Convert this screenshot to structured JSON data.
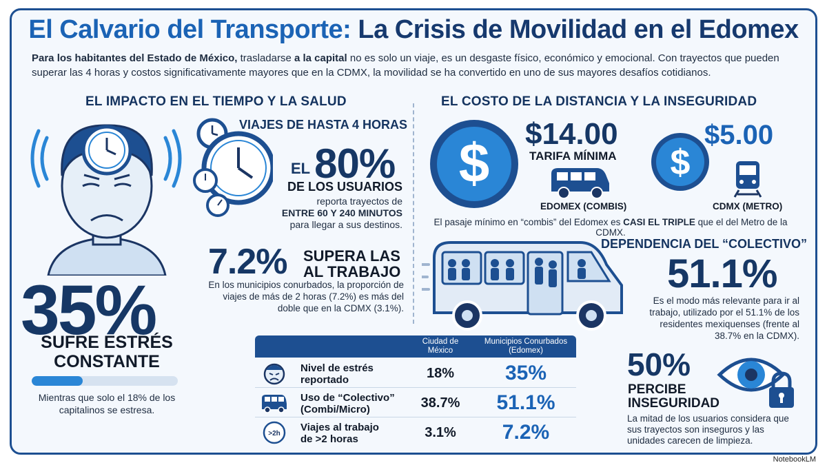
{
  "header": {
    "title_part1": "El Calvario del Transporte:",
    "title_part2": "La Crisis de Movilidad en el Edomex",
    "intro_b1": "Para los habitantes del Estado de México,",
    "intro_t1": " trasladarse ",
    "intro_b2": "a la capital",
    "intro_t2": " no es solo un viaje, es un desgaste físico, económico y emocional. Con trayectos que pueden superar las 4 horas y costos significativamente mayores que en la CDMX, la movilidad se ha convertido en uno de sus mayores desafíos cotidianos."
  },
  "left_section": {
    "heading": "EL IMPACTO EN EL TIEMPO Y LA SALUD",
    "stress_pct": "35%",
    "stress_label": "SUFRE ESTRÉS CONSTANTE",
    "stress_bar_fraction": 0.35,
    "stress_note": "Mientras que solo el 18% de los capitalinos se estresa.",
    "viajes_heading": "VIAJES DE HASTA 4 HORAS",
    "el_prefix": "EL",
    "users_pct": "80%",
    "users_label": "DE LOS USUARIOS",
    "reporta_t1": "reporta trayectos de",
    "reporta_b": "ENTRE 60 Y 240 MINUTOS",
    "reporta_t2": "para llegar a sus destinos.",
    "work_pct": "7.2%",
    "work_label_1": "SUPERA LAS",
    "work_label_2": "AL TRABAJO",
    "work_note": "En los municipios conurbados, la proporción de viajes de más de 2 horas (7.2%) es más del doble que en la CDMX (3.1%)."
  },
  "right_section": {
    "heading": "EL COSTO DE LA DISTANCIA Y LA INSEGURIDAD",
    "edomex_price": "$14.00",
    "edomex_price_label": "TARIFA MÍNIMA",
    "cdmx_price": "$5.00",
    "edomex_label": "EDOMEX (COMBIS)",
    "cdmx_label": "CDMX (METRO)",
    "pasaje_t1": "El pasaje mínimo en “combis” del Edomex es ",
    "pasaje_b": "CASI EL TRIPLE",
    "pasaje_t2": " que el del Metro de la CDMX.",
    "dependencia_heading": "DEPENDENCIA DEL “COLECTIVO”",
    "colectivo_pct": "51.1%",
    "colectivo_note": "Es el modo más relevante para ir al trabajo, utilizado por el 51.1% de los residentes mexiquenses (frente al 38.7% en la CDMX).",
    "inseguridad_pct": "50%",
    "inseguridad_label": "PERCIBE INSEGURIDAD",
    "inseguridad_note": "La mitad de los usuarios considera que sus trayectos son inseguros y las unidades carecen de limpieza."
  },
  "table": {
    "col_cdmx": "Ciudad de México",
    "col_edomex": "Municipios Conurbados (Edomex)",
    "rows": [
      {
        "label": "Nivel de estrés reportado",
        "cdmx": "18%",
        "edomex": "35%",
        "icon": "stressed-face-icon"
      },
      {
        "label": "Uso de “Colectivo” (Combi/Micro)",
        "cdmx": "38.7%",
        "edomex": "51.1%",
        "icon": "van-icon"
      },
      {
        "label": "Viajes al trabajo de >2 horas",
        "cdmx": "3.1%",
        "edomex": "7.2%",
        "icon": "clock-2h-icon",
        "icon_text": ">2h"
      }
    ]
  },
  "colors": {
    "navy": "#163765",
    "accent": "#1b63b5",
    "primary": "#1d4f91",
    "bar": "#2a86d6"
  },
  "footer": {
    "brand": "NotebookLM"
  }
}
